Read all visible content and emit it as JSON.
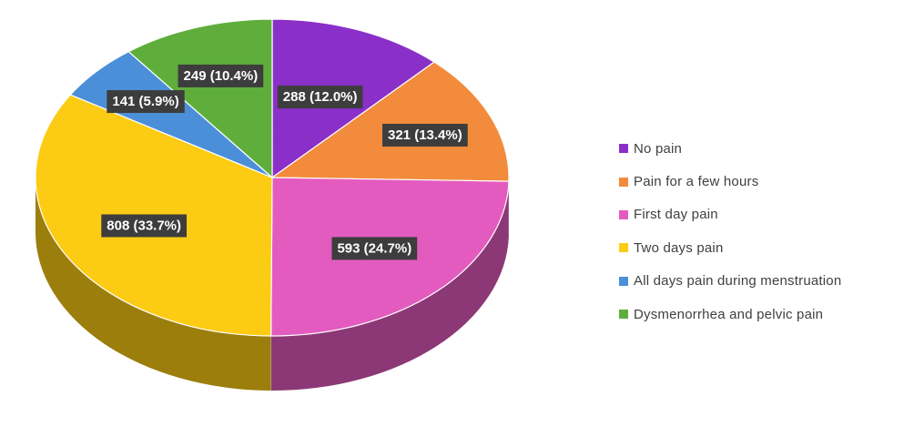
{
  "chart_data": {
    "type": "pie",
    "title": "",
    "legend_position": "right",
    "series": [
      {
        "label": "No pain",
        "value": 288,
        "percent": "12.0%",
        "data_label": "288 (12.0%)",
        "color": "#8b2fc9"
      },
      {
        "label": "Pain for a few hours",
        "value": 321,
        "percent": "13.4%",
        "data_label": "321 (13.4%)",
        "color": "#f28b3c"
      },
      {
        "label": "First day pain",
        "value": 593,
        "percent": "24.7%",
        "data_label": "593 (24.7%)",
        "color": "#e45bbf"
      },
      {
        "label": "Two days pain",
        "value": 808,
        "percent": "33.7%",
        "data_label": "808 (33.7%)",
        "color": "#fccb14"
      },
      {
        "label": "All days pain during menstruation",
        "value": 141,
        "percent": "5.9%",
        "data_label": "141 (5.9%)",
        "color": "#4b8fd9"
      },
      {
        "label": "Dysmenorrhea and pelvic pain",
        "value": 249,
        "percent": "10.4%",
        "data_label": "249 (10.4%)",
        "color": "#5fae3c"
      }
    ]
  }
}
